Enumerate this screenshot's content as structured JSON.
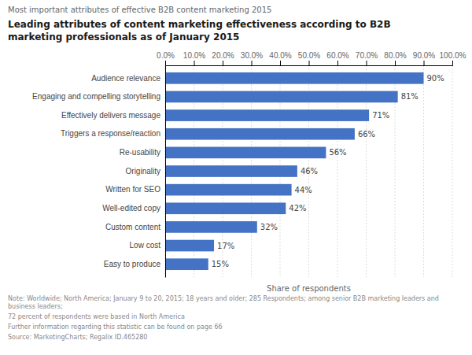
{
  "chart_data": {
    "type": "bar",
    "orientation": "horizontal",
    "subtitle": "Most important attributes of effective B2B content marketing 2015",
    "title": "Leading attributes of content marketing effectiveness according to B2B\nmarketing professionals as of January 2015",
    "categories": [
      "Easy to produce",
      "Low cost",
      "Custom content",
      "Well-edited copy",
      "Written for SEO",
      "Originality",
      "Re-usability",
      "Triggers a response/reaction",
      "Effectively delivers message",
      "Engaging and compelling storytelling",
      "Audience relevance"
    ],
    "values": [
      15,
      17,
      32,
      42,
      44,
      46,
      56,
      66,
      71,
      81,
      90
    ],
    "value_labels": [
      "15%",
      "17%",
      "32%",
      "42%",
      "44%",
      "46%",
      "56%",
      "66%",
      "71%",
      "81%",
      "90%"
    ],
    "data_labels": true,
    "color": "#4472C4",
    "xlabel": "Share of respondents",
    "xlim": [
      0,
      100
    ],
    "xticks": [
      {
        "value": 0,
        "label": "0.0%"
      },
      {
        "value": 10,
        "label": "10.0%"
      },
      {
        "value": 20,
        "label": "20.0%"
      },
      {
        "value": 30,
        "label": "30.0%"
      },
      {
        "value": 40,
        "label": "40.0%"
      },
      {
        "value": 50,
        "label": "50.0%"
      },
      {
        "value": 60,
        "label": "60.0%"
      },
      {
        "value": 70,
        "label": "70.0%"
      },
      {
        "value": 80,
        "label": "80.0%"
      },
      {
        "value": 90,
        "label": "90.0%"
      },
      {
        "value": 100,
        "label": "100.0%"
      }
    ],
    "grid": true,
    "annotations": [
      "Note: Worldwide; North America; January 9 to 20, 2015; 18 years and older; 285 Respondents; among senior B2B marketing leaders and business leaders;",
      "72 percent of respondents were based in North America",
      "Further information regarding this statistic can be found on  page 66",
      "Source: MarketingCharts; Regalix ID.465280"
    ]
  }
}
